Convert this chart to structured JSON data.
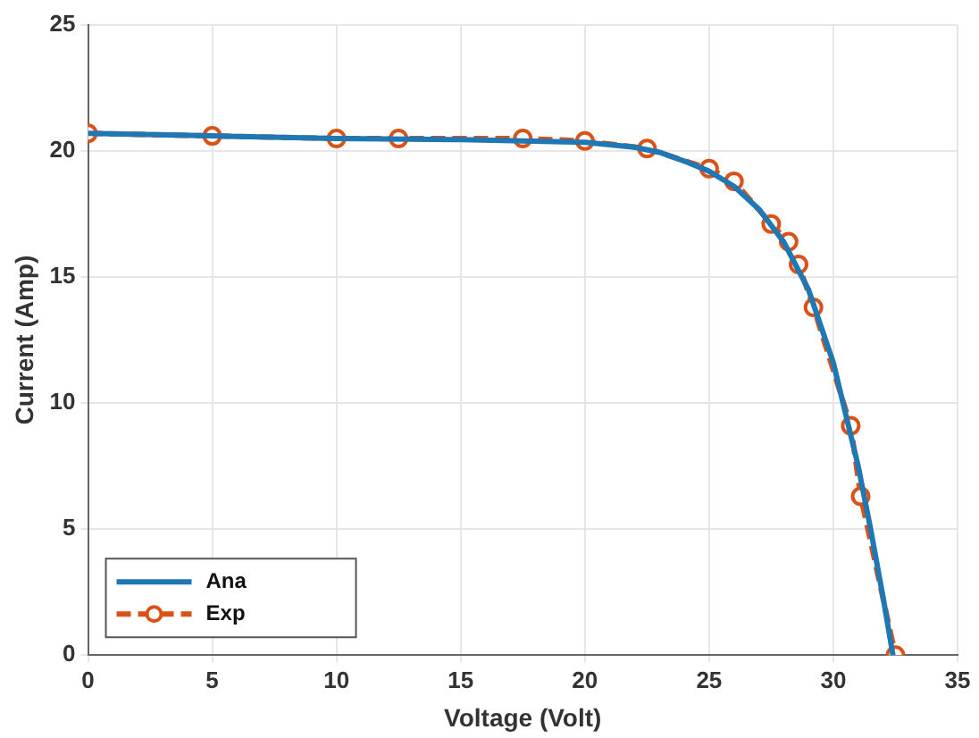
{
  "chart_data": {
    "type": "line",
    "xlabel": "Voltage (Volt)",
    "ylabel": "Current (Amp)",
    "xlim": [
      0,
      35
    ],
    "xticks": [
      0,
      5,
      10,
      15,
      20,
      25,
      30,
      35
    ],
    "ylim": [
      0,
      25
    ],
    "yticks": [
      0,
      5,
      10,
      15,
      20,
      25
    ],
    "grid": true,
    "legend": "bottom left",
    "series": [
      {
        "name": "Ana",
        "color": "#1f77b4",
        "marker": "none",
        "line_style": "solid",
        "x": [
          0,
          5,
          10,
          15,
          20,
          22,
          23,
          24,
          25,
          26,
          27,
          28,
          29,
          30,
          31,
          31.5,
          32,
          32.4
        ],
        "values": [
          20.7,
          20.6,
          20.5,
          20.45,
          20.35,
          20.15,
          19.95,
          19.6,
          19.2,
          18.6,
          17.7,
          16.4,
          14.5,
          11.6,
          7.5,
          5,
          2.3,
          0
        ]
      },
      {
        "name": "Exp",
        "color": "#d95319",
        "marker": "circle",
        "line_style": "dashed",
        "x": [
          0,
          5,
          10,
          12.5,
          17.5,
          20,
          22.5,
          25,
          26,
          27.5,
          28.2,
          28.6,
          29.2,
          30.7,
          31.1,
          32.5
        ],
        "values": [
          20.7,
          20.6,
          20.5,
          20.5,
          20.5,
          20.4,
          20.1,
          19.3,
          18.8,
          17.1,
          16.4,
          15.5,
          13.8,
          9.1,
          6.3,
          0
        ]
      }
    ]
  }
}
